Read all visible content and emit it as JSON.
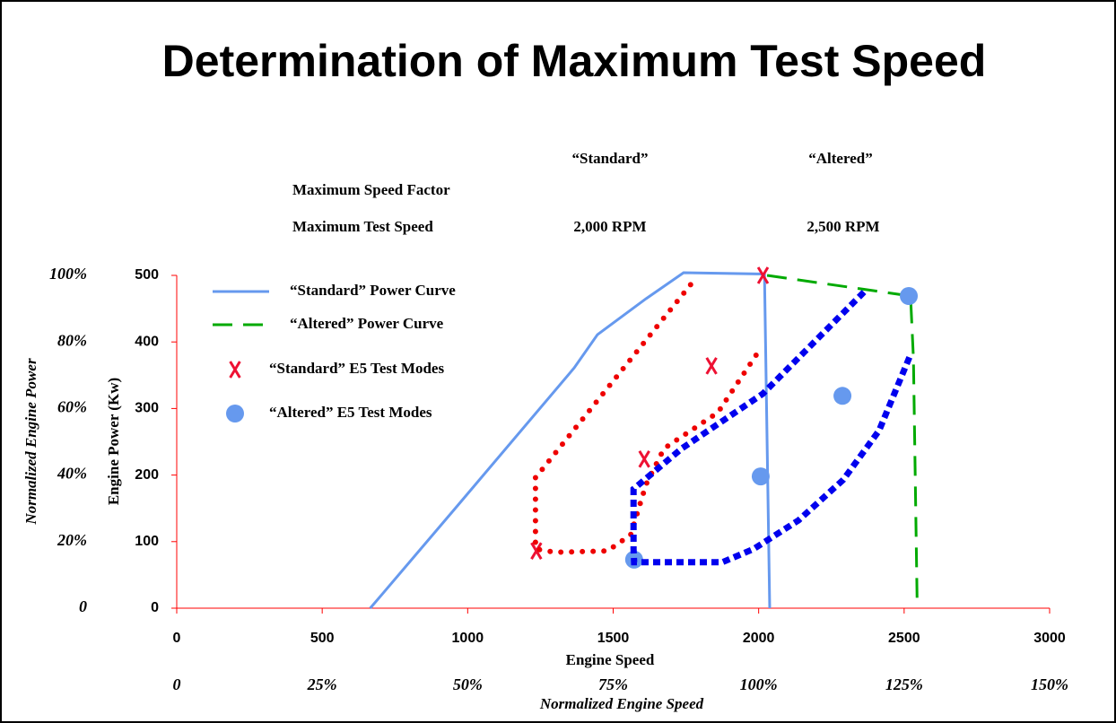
{
  "chart_data": {
    "type": "line",
    "title": "Determination of Maximum Test Speed",
    "xlabel": "Engine Speed",
    "ylabel": "Engine Power (Kw)",
    "x2label": "Normalized Engine Speed",
    "y2label": "Normalized Engine Power",
    "xlim": [
      0,
      3000
    ],
    "xticks": [
      0,
      500,
      1000,
      1500,
      2000,
      2500,
      3000
    ],
    "ylim": [
      0,
      500
    ],
    "yticks": [
      0,
      100,
      200,
      300,
      400,
      500
    ],
    "x2lim": [
      0,
      150
    ],
    "x2ticks": [
      0,
      {
        "value": 25,
        "label": "25%"
      },
      {
        "value": 50,
        "label": "50%"
      },
      {
        "value": 75,
        "label": "75%"
      },
      {
        "value": 100,
        "label": "100%"
      },
      {
        "value": 125,
        "label": "125%"
      },
      {
        "value": 150,
        "label": "150%"
      }
    ],
    "y2lim": [
      0,
      100
    ],
    "y2ticks": [
      0,
      {
        "value": 20,
        "label": "20%"
      },
      {
        "value": 40,
        "label": "40%"
      },
      {
        "value": 60,
        "label": "60%"
      },
      {
        "value": 80,
        "label": "80%"
      },
      {
        "value": 100,
        "label": "100%"
      }
    ],
    "axis_color": "#ff0000",
    "grid": false,
    "legend": "upper left",
    "series": [
      {
        "name": "“Standard” Power Curve",
        "type": "line",
        "style": "solid",
        "color": "#6699ee",
        "x": [
          665,
          712,
          965,
          1366,
          1446,
          1613,
          1742,
          2020,
          2038
        ],
        "values": [
          0,
          24,
          154,
          361,
          411,
          465,
          504,
          502,
          0
        ]
      },
      {
        "name": "“Altered” Power Curve",
        "type": "line",
        "style": "dashed",
        "color": "#00aa00",
        "x": [
          2029,
          2522,
          2532,
          2545
        ],
        "values": [
          500,
          469,
          375,
          0
        ]
      },
      {
        "name": "“Standard” E5 Test Modes",
        "type": "scatter",
        "marker": "x",
        "color": "#ee1133",
        "x": [
          2015,
          1838,
          1607,
          1236
        ],
        "values": [
          500,
          364,
          224,
          86
        ]
      },
      {
        "name": "“Altered” E5 Test Modes",
        "type": "scatter",
        "marker": "circle",
        "color": "#6699ee",
        "x": [
          2516,
          2288,
          2007,
          1572
        ],
        "values": [
          469,
          319,
          198,
          73
        ]
      },
      {
        "type": "line",
        "style": "round-dotted",
        "color": "#ee0000",
        "x": [
          1766,
          1233,
          1233,
          1300,
          1480,
          1560,
          1613,
          1675,
          1860,
          2000
        ],
        "values": [
          486,
          196,
          89,
          84,
          86,
          110,
          186,
          240,
          294,
          386
        ]
      },
      {
        "type": "line",
        "style": "square-dotted",
        "color": "#0000ee",
        "x": [
          2362,
          2014,
          1736,
          1570,
          1570,
          1572,
          1875,
          1983,
          2137,
          2291,
          2414,
          2522
        ],
        "values": [
          475,
          322,
          240,
          179,
          89,
          69,
          69,
          89,
          132,
          193,
          267,
          381
        ]
      }
    ]
  },
  "table": {
    "columns": [
      "“Standard”",
      "“Altered”"
    ],
    "rows": [
      {
        "label": "Maximum Speed Factor"
      },
      {
        "label": "Maximum Test Speed",
        "values": [
          "2,000 RPM",
          "2,500 RPM"
        ]
      }
    ]
  }
}
